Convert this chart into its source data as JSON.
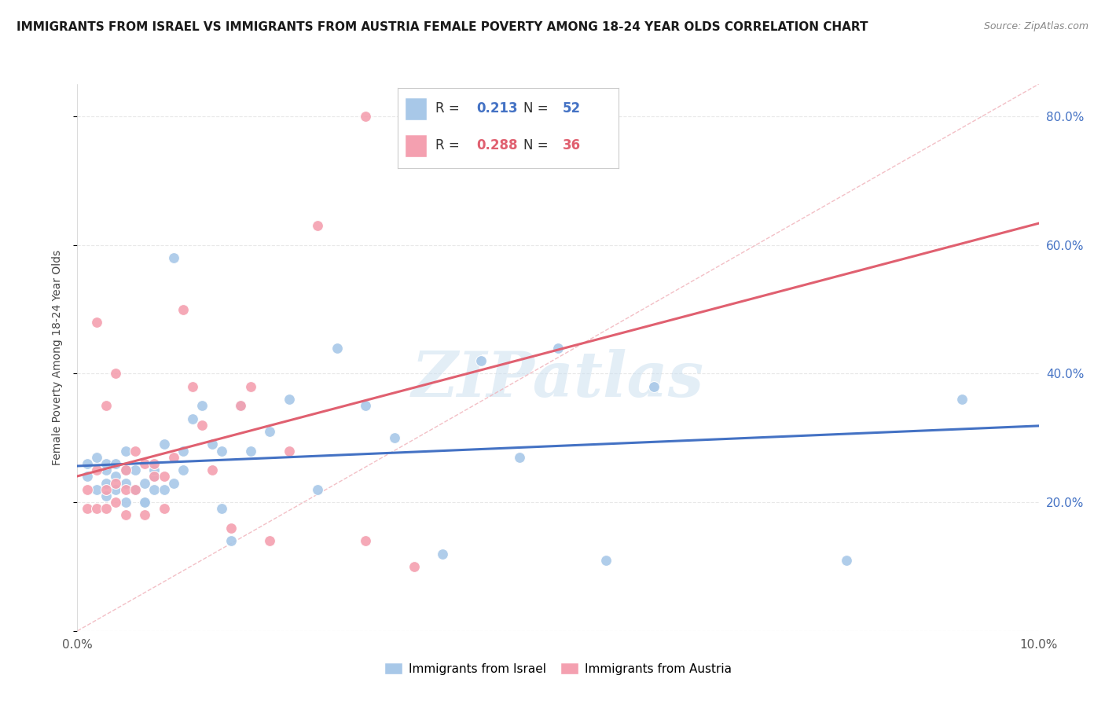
{
  "title": "IMMIGRANTS FROM ISRAEL VS IMMIGRANTS FROM AUSTRIA FEMALE POVERTY AMONG 18-24 YEAR OLDS CORRELATION CHART",
  "source": "Source: ZipAtlas.com",
  "ylabel": "Female Poverty Among 18-24 Year Olds",
  "xlim": [
    0.0,
    0.1
  ],
  "ylim": [
    0.0,
    0.85
  ],
  "israel_color": "#a8c8e8",
  "austria_color": "#f4a0b0",
  "israel_line_color": "#4472c4",
  "austria_line_color": "#e06070",
  "diag_line_color": "#f0b0b8",
  "israel_R": 0.213,
  "israel_N": 52,
  "austria_R": 0.288,
  "austria_N": 36,
  "israel_scatter_x": [
    0.001,
    0.001,
    0.002,
    0.002,
    0.003,
    0.003,
    0.003,
    0.003,
    0.004,
    0.004,
    0.004,
    0.005,
    0.005,
    0.005,
    0.005,
    0.006,
    0.006,
    0.006,
    0.007,
    0.007,
    0.007,
    0.008,
    0.008,
    0.008,
    0.009,
    0.009,
    0.01,
    0.01,
    0.011,
    0.011,
    0.012,
    0.013,
    0.014,
    0.015,
    0.015,
    0.016,
    0.017,
    0.018,
    0.02,
    0.022,
    0.025,
    0.027,
    0.03,
    0.033,
    0.038,
    0.042,
    0.046,
    0.05,
    0.055,
    0.06,
    0.08,
    0.092
  ],
  "israel_scatter_y": [
    0.26,
    0.24,
    0.27,
    0.22,
    0.25,
    0.23,
    0.26,
    0.21,
    0.22,
    0.24,
    0.26,
    0.2,
    0.23,
    0.25,
    0.28,
    0.22,
    0.25,
    0.22,
    0.2,
    0.23,
    0.2,
    0.24,
    0.22,
    0.25,
    0.22,
    0.29,
    0.23,
    0.58,
    0.28,
    0.25,
    0.33,
    0.35,
    0.29,
    0.19,
    0.28,
    0.14,
    0.35,
    0.28,
    0.31,
    0.36,
    0.22,
    0.44,
    0.35,
    0.3,
    0.12,
    0.42,
    0.27,
    0.44,
    0.11,
    0.38,
    0.11,
    0.36
  ],
  "austria_scatter_x": [
    0.001,
    0.001,
    0.002,
    0.002,
    0.002,
    0.003,
    0.003,
    0.003,
    0.004,
    0.004,
    0.004,
    0.005,
    0.005,
    0.005,
    0.006,
    0.006,
    0.007,
    0.007,
    0.008,
    0.008,
    0.009,
    0.009,
    0.01,
    0.011,
    0.012,
    0.013,
    0.014,
    0.016,
    0.017,
    0.018,
    0.02,
    0.022,
    0.025,
    0.03,
    0.03,
    0.035
  ],
  "austria_scatter_y": [
    0.22,
    0.19,
    0.25,
    0.48,
    0.19,
    0.22,
    0.19,
    0.35,
    0.23,
    0.2,
    0.4,
    0.22,
    0.25,
    0.18,
    0.28,
    0.22,
    0.26,
    0.18,
    0.24,
    0.26,
    0.24,
    0.19,
    0.27,
    0.5,
    0.38,
    0.32,
    0.25,
    0.16,
    0.35,
    0.38,
    0.14,
    0.28,
    0.63,
    0.8,
    0.14,
    0.1
  ],
  "watermark_text": "ZIPatlas",
  "background_color": "#ffffff",
  "grid_color": "#e8e8e8",
  "right_tick_color": "#4472c4",
  "title_fontsize": 11,
  "source_fontsize": 9,
  "tick_fontsize": 11
}
